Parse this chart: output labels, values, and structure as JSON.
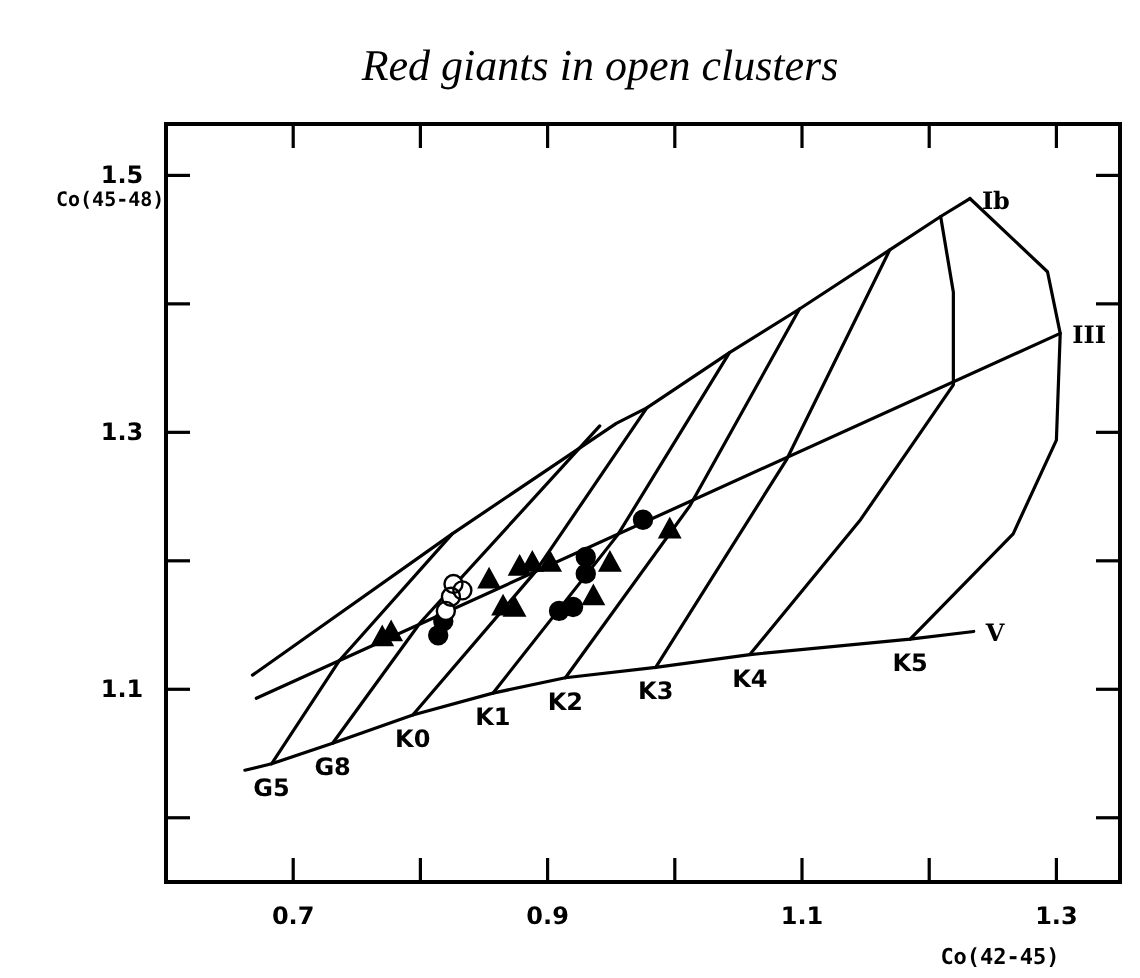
{
  "chart_data": {
    "type": "scatter",
    "title": "Red giants in open clusters",
    "xlabel": "Co(42-45)",
    "ylabel": "Co(45-48)",
    "xlim": [
      0.6,
      1.35
    ],
    "ylim": [
      0.95,
      1.54
    ],
    "xticks": [
      {
        "value": 0.6,
        "label": null
      },
      0.7,
      {
        "value": 0.8,
        "label": null
      },
      0.9,
      {
        "value": 1.0,
        "label": null
      },
      1.1,
      {
        "value": 1.2,
        "label": null
      },
      1.3
    ],
    "yticks": [
      {
        "value": 1.0,
        "label": null
      },
      1.1,
      {
        "value": 1.2,
        "label": null
      },
      1.3,
      {
        "value": 1.4,
        "label": null
      },
      1.5
    ],
    "grid": false,
    "line_style": "solid",
    "series": [
      {
        "name": "Ib",
        "type": "line",
        "color": "#000000",
        "x": [
          0.668,
          0.825,
          0.954,
          0.978,
          1.043,
          1.098,
          1.169,
          1.209,
          1.232
        ],
        "values": [
          1.111,
          1.221,
          1.307,
          1.319,
          1.362,
          1.396,
          1.442,
          1.468,
          1.482
        ]
      },
      {
        "name": "III",
        "type": "line",
        "color": "#000000",
        "x": [
          0.671,
          1.303
        ],
        "values": [
          1.093,
          1.377
        ]
      },
      {
        "name": "V",
        "type": "line",
        "color": "#000000",
        "x": [
          0.662,
          0.683,
          0.731,
          0.794,
          0.857,
          0.914,
          0.985,
          1.059,
          1.185,
          1.235
        ],
        "values": [
          1.037,
          1.042,
          1.058,
          1.08,
          1.097,
          1.109,
          1.117,
          1.127,
          1.139,
          1.145
        ]
      },
      {
        "name": "G5",
        "type": "line",
        "color": "#000000",
        "x": [
          0.825,
          0.736,
          0.683
        ],
        "values": [
          1.221,
          1.122,
          1.042
        ]
      },
      {
        "name": "G8",
        "type": "line",
        "color": "#000000",
        "x": [
          0.941,
          0.8,
          0.731
        ],
        "values": [
          1.305,
          1.152,
          1.058
        ]
      },
      {
        "name": "K0",
        "type": "line",
        "color": "#000000",
        "x": [
          0.978,
          0.89,
          0.794
        ],
        "values": [
          1.319,
          1.191,
          1.08
        ]
      },
      {
        "name": "K1",
        "type": "line",
        "color": "#000000",
        "x": [
          1.043,
          0.955,
          0.857
        ],
        "values": [
          1.362,
          1.22,
          1.097
        ]
      },
      {
        "name": "K2",
        "type": "line",
        "color": "#000000",
        "x": [
          1.098,
          1.012,
          0.914
        ],
        "values": [
          1.396,
          1.243,
          1.109
        ]
      },
      {
        "name": "K3",
        "type": "line",
        "color": "#000000",
        "x": [
          1.169,
          1.088,
          0.985
        ],
        "values": [
          1.442,
          1.279,
          1.117
        ]
      },
      {
        "name": "K4",
        "type": "line",
        "color": "#000000",
        "x": [
          1.209,
          1.219,
          1.219,
          1.146,
          1.059
        ],
        "values": [
          1.468,
          1.409,
          1.337,
          1.232,
          1.127
        ]
      },
      {
        "name": "K5",
        "type": "line",
        "color": "#000000",
        "x": [
          1.232,
          1.293,
          1.303,
          1.3,
          1.266,
          1.185
        ],
        "values": [
          1.482,
          1.425,
          1.377,
          1.294,
          1.221,
          1.139
        ]
      },
      {
        "color": "#000000",
        "marker": "triangle",
        "x": [
          0.77,
          0.777,
          0.854,
          0.878,
          0.888,
          0.902,
          0.865,
          0.874,
          0.936,
          0.949,
          0.996
        ],
        "values": [
          1.14,
          1.144,
          1.185,
          1.195,
          1.198,
          1.198,
          1.164,
          1.163,
          1.172,
          1.198,
          1.224
        ]
      },
      {
        "color": "#000000",
        "marker": "circle",
        "x": [
          0.814,
          0.818,
          0.93,
          0.93,
          0.909,
          0.92,
          0.975
        ],
        "values": [
          1.142,
          1.153,
          1.203,
          1.19,
          1.161,
          1.164,
          1.232
        ]
      },
      {
        "color": "#ffffff",
        "marker": "circle",
        "x": [
          0.826,
          0.833,
          0.824,
          0.82
        ],
        "values": [
          1.182,
          1.177,
          1.172,
          1.161
        ]
      }
    ]
  }
}
